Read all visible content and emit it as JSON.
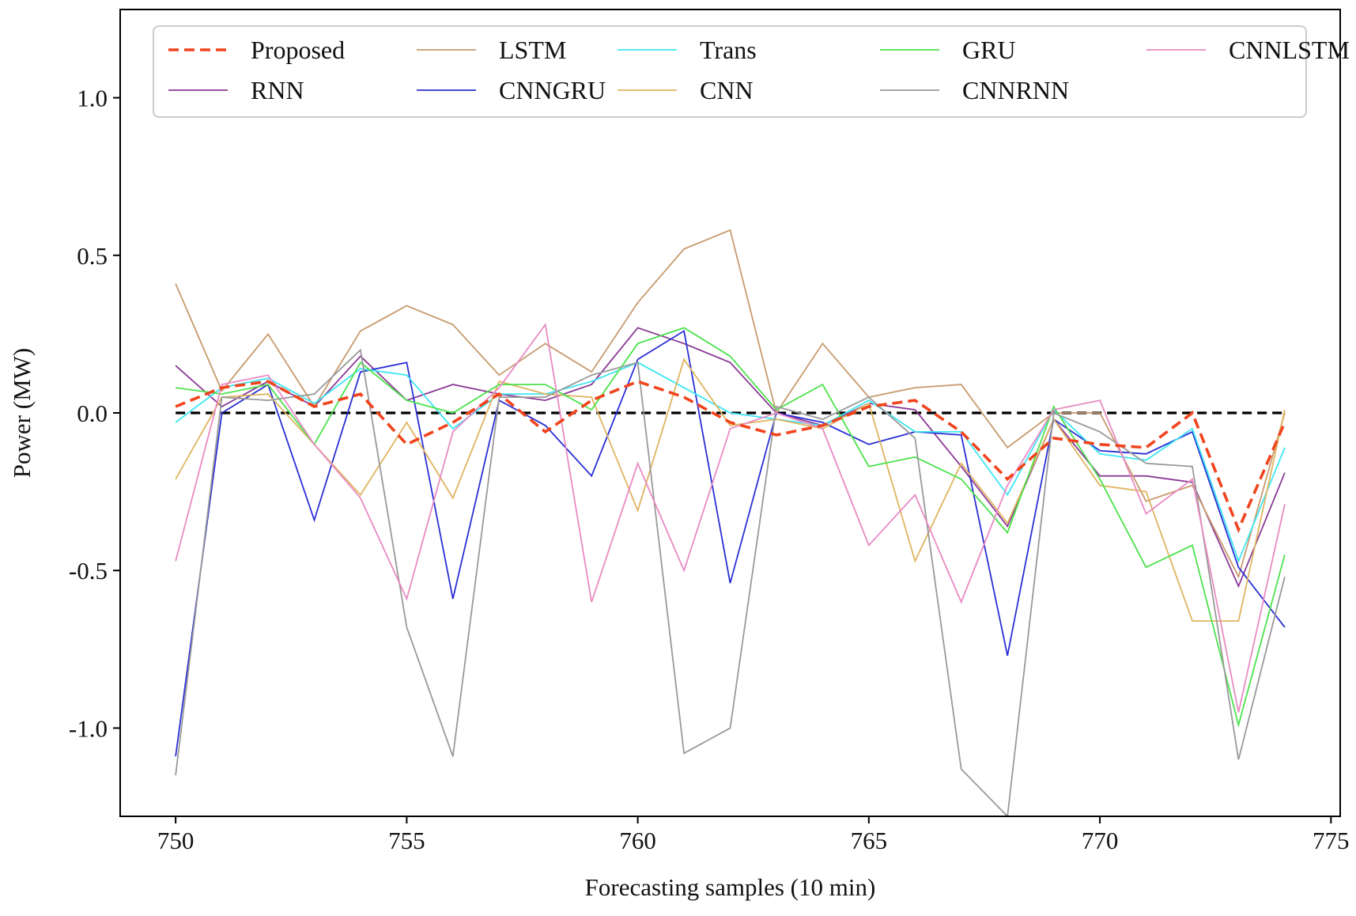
{
  "chart_data": {
    "type": "line",
    "title": "",
    "xlabel": "Forecasting samples (10 min)",
    "ylabel": "Power (MW)",
    "xlim": [
      748.8,
      775.2
    ],
    "ylim": [
      -1.28,
      1.28
    ],
    "xticks": [
      750,
      755,
      760,
      765,
      770,
      775
    ],
    "yticks": [
      -1.0,
      -0.5,
      0.0,
      0.5,
      1.0
    ],
    "xtick_labels": [
      "750",
      "755",
      "760",
      "765",
      "770",
      "775"
    ],
    "ytick_labels": [
      "-1.0",
      "-0.5",
      "0.0",
      "0.5",
      "1.0"
    ],
    "legend_position": "top",
    "x": [
      750,
      751,
      752,
      753,
      754,
      755,
      756,
      757,
      758,
      759,
      760,
      761,
      762,
      763,
      764,
      765,
      766,
      767,
      768,
      769,
      770,
      771,
      772,
      773,
      774
    ],
    "reference_line": {
      "value": 0.0,
      "style": "dashed",
      "color": "#000000"
    },
    "series": [
      {
        "name": "Proposed",
        "color": "#f0441d",
        "style": "dashed",
        "values": [
          0.02,
          0.08,
          0.1,
          0.02,
          0.06,
          -0.1,
          -0.03,
          0.06,
          -0.06,
          0.04,
          0.1,
          0.05,
          -0.03,
          -0.07,
          -0.04,
          0.02,
          0.04,
          -0.06,
          -0.21,
          -0.08,
          -0.1,
          -0.11,
          0.0,
          -0.37,
          -0.03
        ]
      },
      {
        "name": "RNN",
        "color": "#8b3a96",
        "style": "solid",
        "values": [
          0.15,
          0.02,
          0.1,
          0.02,
          0.18,
          0.04,
          0.09,
          0.06,
          0.04,
          0.09,
          0.27,
          0.22,
          0.16,
          0.0,
          -0.04,
          0.03,
          0.01,
          -0.17,
          -0.36,
          -0.02,
          -0.2,
          -0.2,
          -0.22,
          -0.55,
          -0.19
        ]
      },
      {
        "name": "LSTM",
        "color": "#c89a6e",
        "style": "solid",
        "values": [
          0.41,
          0.07,
          0.25,
          0.02,
          0.26,
          0.34,
          0.28,
          0.12,
          0.22,
          0.13,
          0.35,
          0.52,
          0.58,
          0.0,
          0.22,
          0.05,
          0.08,
          0.09,
          -0.11,
          0.0,
          0.0,
          -0.28,
          -0.23,
          -0.52,
          0.0
        ]
      },
      {
        "name": "CNNGRU",
        "color": "#2a2fd4",
        "style": "solid",
        "values": [
          -1.09,
          0.0,
          0.09,
          -0.34,
          0.13,
          0.16,
          -0.59,
          0.04,
          -0.04,
          -0.2,
          0.17,
          0.26,
          -0.54,
          0.0,
          -0.03,
          -0.1,
          -0.06,
          -0.07,
          -0.77,
          -0.02,
          -0.12,
          -0.13,
          -0.06,
          -0.49,
          -0.68
        ]
      },
      {
        "name": "Trans",
        "color": "#3ee6f2",
        "style": "solid",
        "values": [
          -0.03,
          0.08,
          0.11,
          0.03,
          0.14,
          0.12,
          -0.05,
          0.06,
          0.06,
          0.1,
          0.16,
          0.08,
          0.0,
          -0.02,
          -0.04,
          0.04,
          -0.06,
          -0.06,
          -0.26,
          0.01,
          -0.13,
          -0.15,
          -0.05,
          -0.47,
          -0.11
        ]
      },
      {
        "name": "CNN",
        "color": "#dfb45f",
        "style": "solid",
        "values": [
          -0.21,
          0.05,
          0.06,
          -0.1,
          -0.26,
          -0.03,
          -0.27,
          0.1,
          0.06,
          0.05,
          -0.31,
          0.17,
          -0.04,
          -0.02,
          -0.05,
          0.03,
          -0.47,
          -0.16,
          -0.35,
          -0.02,
          -0.23,
          -0.25,
          -0.66,
          -0.66,
          0.01
        ]
      },
      {
        "name": "GRU",
        "color": "#4ce24c",
        "style": "solid",
        "values": [
          0.08,
          0.06,
          0.09,
          -0.1,
          0.16,
          0.04,
          0.0,
          0.09,
          0.09,
          0.01,
          0.22,
          0.27,
          0.18,
          0.01,
          0.09,
          -0.17,
          -0.14,
          -0.21,
          -0.38,
          0.02,
          -0.21,
          -0.49,
          -0.42,
          -0.99,
          -0.45
        ]
      },
      {
        "name": "CNNRNN",
        "color": "#999999",
        "style": "solid",
        "values": [
          -1.15,
          0.05,
          0.04,
          0.06,
          0.2,
          -0.68,
          -1.09,
          0.05,
          0.05,
          0.12,
          0.16,
          -1.08,
          -1.0,
          0.02,
          -0.02,
          0.05,
          -0.08,
          -1.13,
          -1.28,
          0.0,
          -0.06,
          -0.16,
          -0.17,
          -1.1,
          -0.52
        ]
      },
      {
        "name": "CNNLSTM",
        "color": "#e98ac4",
        "style": "solid",
        "values": [
          -0.47,
          0.09,
          0.12,
          -0.1,
          -0.27,
          -0.59,
          -0.06,
          0.08,
          0.28,
          -0.6,
          -0.16,
          -0.5,
          -0.05,
          0.0,
          -0.05,
          -0.42,
          -0.26,
          -0.6,
          -0.23,
          0.01,
          0.04,
          -0.32,
          -0.21,
          -0.95,
          -0.29
        ]
      }
    ]
  }
}
